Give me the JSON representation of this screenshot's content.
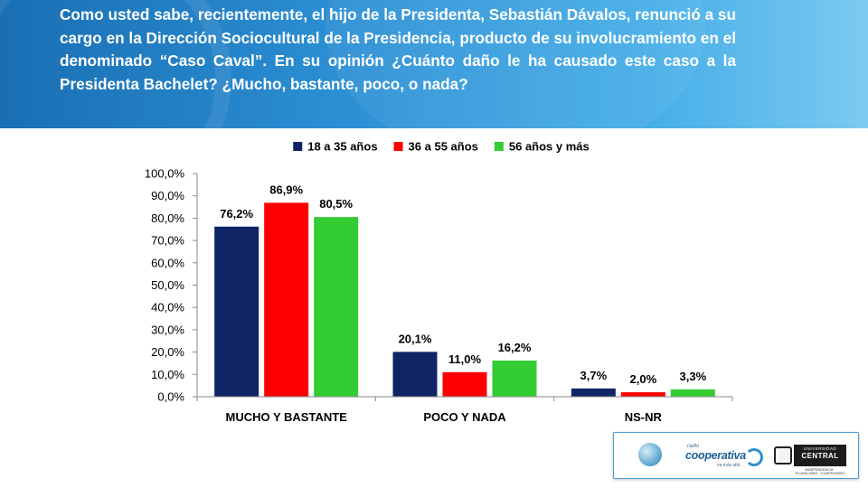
{
  "question": "Como usted sabe, recientemente, el hijo de la Presidenta, Sebastián Dávalos, renunció a su cargo en la Dirección Sociocultural de la Presidencia, producto de su involucramiento en el denominado “Caso Caval”. En su opinión ¿Cuánto daño le ha causado este caso a la Presidenta Bachelet? ¿Mucho, bastante, poco, o nada?",
  "colors": {
    "header": "#2c8fd4",
    "series": [
      "#0f2565",
      "#ff0000",
      "#33cc33"
    ]
  },
  "chart_data": {
    "type": "bar",
    "categories": [
      "MUCHO Y BASTANTE",
      "POCO Y NADA",
      "NS-NR"
    ],
    "series": [
      {
        "name": "18 a 35 años",
        "values": [
          76.2,
          20.1,
          3.7
        ],
        "labels": [
          "76,2%",
          "20,1%",
          "3,7%"
        ]
      },
      {
        "name": "36 a 55 años",
        "values": [
          86.9,
          11.0,
          2.0
        ],
        "labels": [
          "86,9%",
          "11,0%",
          "2,0%"
        ]
      },
      {
        "name": "56 años y más",
        "values": [
          80.5,
          16.2,
          3.3
        ],
        "labels": [
          "80,5%",
          "16,2%",
          "3,3%"
        ]
      }
    ],
    "yticks": [
      "0,0%",
      "10,0%",
      "20,0%",
      "30,0%",
      "40,0%",
      "50,0%",
      "60,0%",
      "70,0%",
      "80,0%",
      "90,0%",
      "100,0%"
    ],
    "ylim": [
      0,
      100
    ],
    "legend": "top",
    "grid": false
  },
  "logos": {
    "coop_small": "radio",
    "coop_name": "cooperativa",
    "coop_tag": "va más allá",
    "uc_top": "UNIVERSIDAD",
    "uc_name": "CENTRAL",
    "uc_sub": "INDEPENDENCIA · PLURALISMO · COMPROMISO"
  }
}
